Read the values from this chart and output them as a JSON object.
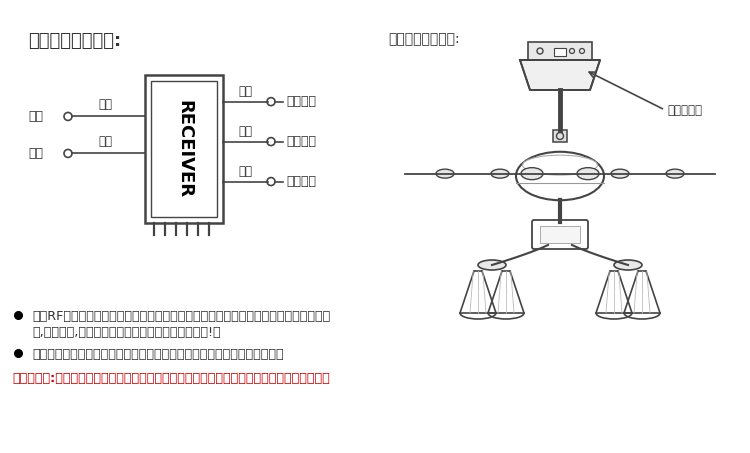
{
  "title_left": "接收器接线示意图:",
  "title_right": "接收器安装示意图:",
  "bullet1_line1": "采用RF无线数码发射技术，一对一控制，重码率小于百万分之一（背面都贴有相同的编",
  "bullet1_line2": "码,如有损坏,发射器和接收器必须同时发回厂家维修!）",
  "bullet2": "在充许的空间内，可以通过发射器任意角度控制负载工作，不受方向限制。",
  "warning": "！特别注意:如果风扇和灯都带有开关，请将风扇开到最高速并打开灯开关后才进行遥控操作。",
  "receiver_box_label": "（接收器）",
  "bg_color": "#ffffff",
  "text_color": "#333333",
  "warning_color": "#cc0000",
  "line_color": "#444444"
}
